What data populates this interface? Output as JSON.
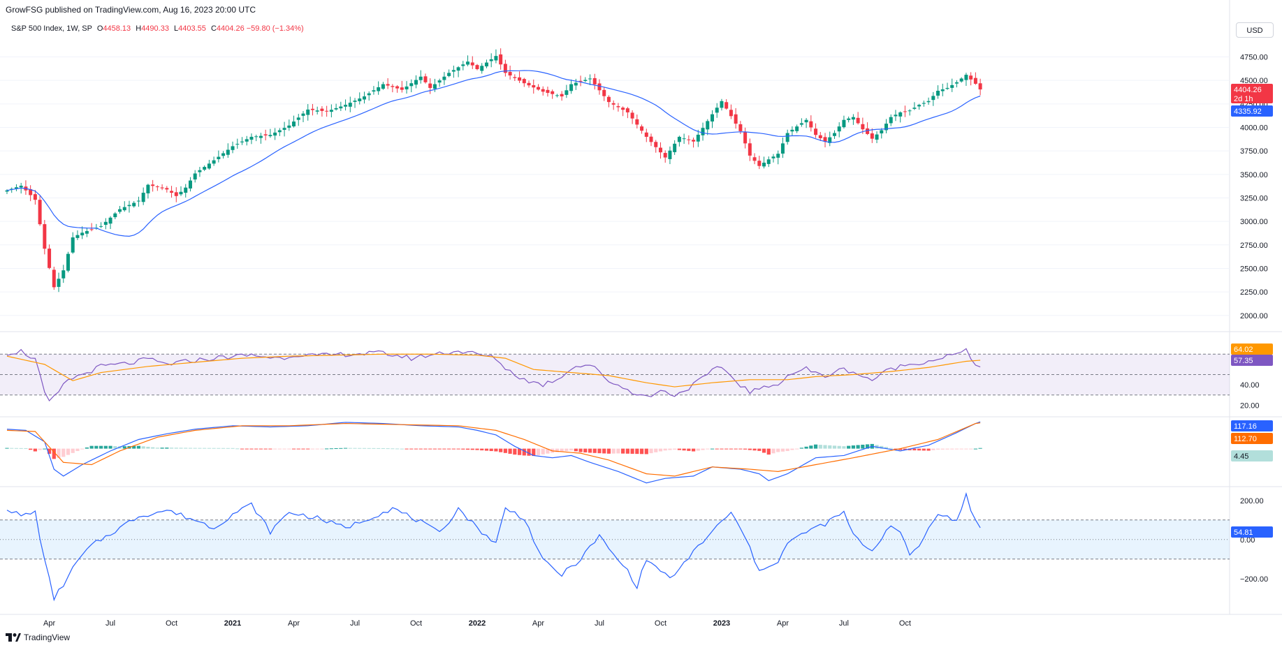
{
  "header": {
    "published": "GrowFSG published on TradingView.com, Aug 16, 2023 20:00 UTC",
    "symbol": "S&P 500 Index, 1W, SP",
    "open_label": "O",
    "open": "4458.13",
    "high_label": "H",
    "high": "4490.33",
    "low_label": "L",
    "low": "4403.55",
    "close_label": "C",
    "close": "4404.26",
    "change": "−59.80 (−1.34%)"
  },
  "currency": "USD",
  "brand": "TradingView",
  "colors": {
    "up": "#089981",
    "down": "#f23645",
    "ma": "#2962ff",
    "rsi": "#7e57c2",
    "rsi_ma": "#ff9800",
    "macd": "#2962ff",
    "signal": "#ff6d00",
    "cci": "#2962ff"
  },
  "badges": {
    "price": "4404.26",
    "countdown": "2d 1h",
    "ma": "4335.92",
    "rsi_ma": "64.02",
    "rsi": "57.35",
    "macd": "117.16",
    "signal": "112.70",
    "hist": "4.45",
    "cci": "54.81"
  },
  "chart_data": {
    "type": "candlestick",
    "title": "S&P 500 Index, 1W, SP",
    "x_ticks": [
      "Apr",
      "Jul",
      "Oct",
      "2021",
      "Apr",
      "Jul",
      "Oct",
      "2022",
      "Apr",
      "Jul",
      "Oct",
      "2023",
      "Apr",
      "Jul",
      "Oct"
    ],
    "y_ticks": [
      "4750.00",
      "4500.00",
      "4250.00",
      "4000.00",
      "3750.00",
      "3500.00",
      "3250.00",
      "3000.00",
      "2750.00",
      "2500.00",
      "2250.00",
      "2000.00"
    ],
    "ylim": [
      1850,
      4880
    ],
    "anchors_close": [
      [
        0,
        3330
      ],
      [
        3,
        3380
      ],
      [
        6,
        3230
      ],
      [
        8,
        2710
      ],
      [
        10,
        2300
      ],
      [
        12,
        2480
      ],
      [
        14,
        2830
      ],
      [
        16,
        2880
      ],
      [
        20,
        2950
      ],
      [
        24,
        3130
      ],
      [
        28,
        3220
      ],
      [
        30,
        3390
      ],
      [
        34,
        3340
      ],
      [
        36,
        3270
      ],
      [
        38,
        3360
      ],
      [
        40,
        3510
      ],
      [
        44,
        3650
      ],
      [
        48,
        3800
      ],
      [
        52,
        3900
      ],
      [
        56,
        3920
      ],
      [
        60,
        4020
      ],
      [
        64,
        4190
      ],
      [
        68,
        4170
      ],
      [
        72,
        4240
      ],
      [
        76,
        4330
      ],
      [
        80,
        4460
      ],
      [
        84,
        4400
      ],
      [
        88,
        4540
      ],
      [
        90,
        4420
      ],
      [
        94,
        4580
      ],
      [
        98,
        4700
      ],
      [
        100,
        4620
      ],
      [
        104,
        4760
      ],
      [
        106,
        4580
      ],
      [
        110,
        4470
      ],
      [
        114,
        4380
      ],
      [
        118,
        4330
      ],
      [
        120,
        4460
      ],
      [
        124,
        4520
      ],
      [
        128,
        4270
      ],
      [
        132,
        4160
      ],
      [
        136,
        3900
      ],
      [
        140,
        3680
      ],
      [
        143,
        3900
      ],
      [
        146,
        3850
      ],
      [
        150,
        4140
      ],
      [
        152,
        4280
      ],
      [
        154,
        4120
      ],
      [
        156,
        3960
      ],
      [
        158,
        3700
      ],
      [
        160,
        3590
      ],
      [
        162,
        3660
      ],
      [
        164,
        3720
      ],
      [
        166,
        3940
      ],
      [
        168,
        4010
      ],
      [
        170,
        4080
      ],
      [
        172,
        3920
      ],
      [
        174,
        3850
      ],
      [
        176,
        3940
      ],
      [
        178,
        4080
      ],
      [
        180,
        4110
      ],
      [
        182,
        3980
      ],
      [
        184,
        3880
      ],
      [
        186,
        3970
      ],
      [
        188,
        4110
      ],
      [
        190,
        4160
      ],
      [
        192,
        4180
      ],
      [
        194,
        4240
      ],
      [
        196,
        4280
      ],
      [
        198,
        4390
      ],
      [
        200,
        4420
      ],
      [
        202,
        4480
      ],
      [
        204,
        4560
      ],
      [
        205,
        4510
      ],
      [
        206,
        4464
      ],
      [
        207,
        4404
      ]
    ],
    "ma_series": {
      "name": "",
      "type": "sma",
      "period": 20
    },
    "rsi": {
      "ylim": [
        10,
        90
      ],
      "ticks": [
        "40.00",
        "20.00"
      ],
      "bands": [
        70,
        50,
        30
      ],
      "anchors": [
        [
          0,
          71
        ],
        [
          3,
          73
        ],
        [
          6,
          65
        ],
        [
          8,
          32
        ],
        [
          9,
          22
        ],
        [
          11,
          33
        ],
        [
          13,
          45
        ],
        [
          16,
          50
        ],
        [
          20,
          58
        ],
        [
          26,
          61
        ],
        [
          30,
          65
        ],
        [
          34,
          60
        ],
        [
          40,
          64
        ],
        [
          46,
          67
        ],
        [
          52,
          69
        ],
        [
          58,
          66
        ],
        [
          62,
          70
        ],
        [
          66,
          68
        ],
        [
          72,
          70
        ],
        [
          80,
          71
        ],
        [
          86,
          66
        ],
        [
          92,
          71
        ],
        [
          96,
          73
        ],
        [
          100,
          70
        ],
        [
          104,
          66
        ],
        [
          106,
          56
        ],
        [
          110,
          45
        ],
        [
          114,
          40
        ],
        [
          118,
          48
        ],
        [
          120,
          57
        ],
        [
          124,
          60
        ],
        [
          128,
          44
        ],
        [
          132,
          35
        ],
        [
          136,
          28
        ],
        [
          140,
          35
        ],
        [
          142,
          29
        ],
        [
          146,
          40
        ],
        [
          150,
          53
        ],
        [
          152,
          58
        ],
        [
          154,
          48
        ],
        [
          156,
          40
        ],
        [
          158,
          33
        ],
        [
          160,
          36
        ],
        [
          162,
          37
        ],
        [
          164,
          42
        ],
        [
          166,
          49
        ],
        [
          168,
          53
        ],
        [
          170,
          56
        ],
        [
          172,
          51
        ],
        [
          174,
          48
        ],
        [
          176,
          53
        ],
        [
          178,
          55
        ],
        [
          180,
          53
        ],
        [
          182,
          48
        ],
        [
          184,
          45
        ],
        [
          186,
          50
        ],
        [
          188,
          56
        ],
        [
          190,
          58
        ],
        [
          192,
          60
        ],
        [
          194,
          62
        ],
        [
          196,
          63
        ],
        [
          198,
          66
        ],
        [
          200,
          68
        ],
        [
          202,
          70
        ],
        [
          204,
          73
        ],
        [
          205,
          66
        ],
        [
          206,
          61
        ],
        [
          207,
          57.35
        ]
      ],
      "ma_anchors": [
        [
          0,
          68
        ],
        [
          8,
          60
        ],
        [
          14,
          44
        ],
        [
          20,
          52
        ],
        [
          30,
          58
        ],
        [
          40,
          62
        ],
        [
          50,
          66
        ],
        [
          60,
          68
        ],
        [
          70,
          69
        ],
        [
          80,
          70
        ],
        [
          90,
          70
        ],
        [
          100,
          69
        ],
        [
          106,
          66
        ],
        [
          112,
          55
        ],
        [
          120,
          52
        ],
        [
          128,
          49
        ],
        [
          136,
          42
        ],
        [
          142,
          38
        ],
        [
          150,
          42
        ],
        [
          158,
          45
        ],
        [
          166,
          45
        ],
        [
          172,
          48
        ],
        [
          180,
          50
        ],
        [
          188,
          53
        ],
        [
          196,
          57
        ],
        [
          204,
          63
        ],
        [
          207,
          64.02
        ]
      ]
    },
    "macd": {
      "ylim": [
        -160,
        130
      ],
      "macd_anchors": [
        [
          0,
          85
        ],
        [
          4,
          80
        ],
        [
          8,
          30
        ],
        [
          10,
          -90
        ],
        [
          12,
          -120
        ],
        [
          16,
          -70
        ],
        [
          22,
          -10
        ],
        [
          28,
          40
        ],
        [
          34,
          65
        ],
        [
          40,
          85
        ],
        [
          48,
          100
        ],
        [
          56,
          95
        ],
        [
          64,
          100
        ],
        [
          72,
          115
        ],
        [
          80,
          110
        ],
        [
          88,
          100
        ],
        [
          96,
          95
        ],
        [
          100,
          80
        ],
        [
          104,
          60
        ],
        [
          108,
          10
        ],
        [
          112,
          -30
        ],
        [
          116,
          -40
        ],
        [
          120,
          -30
        ],
        [
          124,
          -60
        ],
        [
          130,
          -100
        ],
        [
          136,
          -150
        ],
        [
          140,
          -130
        ],
        [
          146,
          -120
        ],
        [
          150,
          -80
        ],
        [
          156,
          -90
        ],
        [
          160,
          -110
        ],
        [
          162,
          -140
        ],
        [
          166,
          -110
        ],
        [
          172,
          -40
        ],
        [
          178,
          -30
        ],
        [
          184,
          10
        ],
        [
          190,
          -10
        ],
        [
          196,
          15
        ],
        [
          202,
          70
        ],
        [
          206,
          110
        ],
        [
          207,
          117.16
        ]
      ],
      "signal_anchors": [
        [
          0,
          80
        ],
        [
          6,
          75
        ],
        [
          12,
          -60
        ],
        [
          18,
          -70
        ],
        [
          24,
          -10
        ],
        [
          32,
          50
        ],
        [
          40,
          80
        ],
        [
          50,
          100
        ],
        [
          60,
          100
        ],
        [
          72,
          110
        ],
        [
          84,
          105
        ],
        [
          96,
          100
        ],
        [
          104,
          80
        ],
        [
          110,
          40
        ],
        [
          116,
          -10
        ],
        [
          122,
          -20
        ],
        [
          128,
          -50
        ],
        [
          136,
          -110
        ],
        [
          142,
          -120
        ],
        [
          150,
          -80
        ],
        [
          158,
          -90
        ],
        [
          164,
          -100
        ],
        [
          172,
          -70
        ],
        [
          180,
          -40
        ],
        [
          190,
          0
        ],
        [
          198,
          40
        ],
        [
          206,
          110
        ],
        [
          207,
          112.7
        ]
      ],
      "hist_last": 4.45,
      "hist_zero_label": "4.45"
    },
    "cci": {
      "ylim": [
        -340,
        260
      ],
      "ticks": [
        "200.00",
        "0.00",
        "−200.00"
      ],
      "bands": [
        100,
        0,
        -100
      ],
      "anchors": [
        [
          0,
          160
        ],
        [
          3,
          120
        ],
        [
          6,
          140
        ],
        [
          8,
          -110
        ],
        [
          10,
          -300
        ],
        [
          12,
          -230
        ],
        [
          15,
          -110
        ],
        [
          18,
          -30
        ],
        [
          22,
          30
        ],
        [
          28,
          120
        ],
        [
          34,
          150
        ],
        [
          40,
          100
        ],
        [
          44,
          60
        ],
        [
          48,
          130
        ],
        [
          52,
          180
        ],
        [
          56,
          40
        ],
        [
          60,
          140
        ],
        [
          66,
          110
        ],
        [
          72,
          60
        ],
        [
          78,
          120
        ],
        [
          82,
          160
        ],
        [
          88,
          90
        ],
        [
          92,
          30
        ],
        [
          96,
          160
        ],
        [
          100,
          60
        ],
        [
          104,
          -20
        ],
        [
          106,
          160
        ],
        [
          110,
          110
        ],
        [
          114,
          -110
        ],
        [
          118,
          -180
        ],
        [
          122,
          -100
        ],
        [
          126,
          20
        ],
        [
          128,
          -50
        ],
        [
          132,
          -160
        ],
        [
          134,
          -240
        ],
        [
          136,
          -100
        ],
        [
          140,
          -180
        ],
        [
          142,
          -190
        ],
        [
          146,
          -60
        ],
        [
          150,
          40
        ],
        [
          154,
          140
        ],
        [
          158,
          -40
        ],
        [
          160,
          -170
        ],
        [
          162,
          -130
        ],
        [
          164,
          -110
        ],
        [
          166,
          -20
        ],
        [
          170,
          40
        ],
        [
          174,
          80
        ],
        [
          178,
          140
        ],
        [
          180,
          20
        ],
        [
          184,
          -60
        ],
        [
          188,
          80
        ],
        [
          190,
          30
        ],
        [
          192,
          -80
        ],
        [
          194,
          -30
        ],
        [
          198,
          140
        ],
        [
          202,
          90
        ],
        [
          204,
          230
        ],
        [
          205,
          150
        ],
        [
          206,
          110
        ],
        [
          207,
          54.81
        ]
      ]
    }
  }
}
